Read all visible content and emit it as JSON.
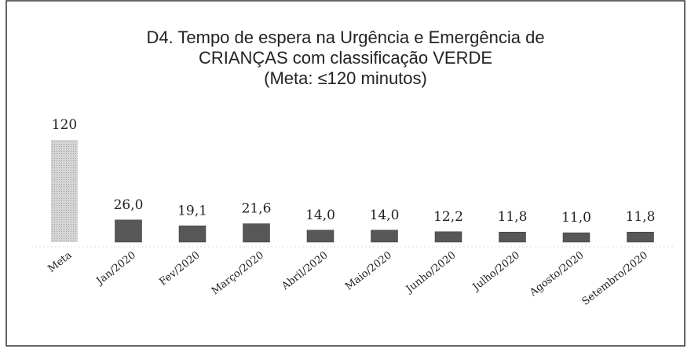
{
  "chart_data": {
    "type": "bar",
    "title": [
      "D4. Tempo de espera na Urgência e Emergência de",
      "CRIANÇAS com classificação VERDE",
      "(Meta: ≤120 minutos)"
    ],
    "categories": [
      "Meta",
      "Jan/2020",
      "Fev/2020",
      "Março/2020",
      "Abril/2020",
      "Maio/2020",
      "Junho/2020",
      "Julho/2020",
      "Agosto/2020",
      "Setembro/2020"
    ],
    "values": [
      120,
      26.0,
      19.1,
      21.6,
      14.0,
      14.0,
      12.2,
      11.8,
      11.0,
      11.8
    ],
    "value_labels": [
      "120",
      "26,0",
      "19,1",
      "21,6",
      "14,0",
      "14,0",
      "12,2",
      "11,8",
      "11,0",
      "11,8"
    ],
    "colors": [
      "#c9c9c9",
      "#575757",
      "#575757",
      "#575757",
      "#575757",
      "#575757",
      "#575757",
      "#575757",
      "#575757",
      "#575757"
    ]
  }
}
